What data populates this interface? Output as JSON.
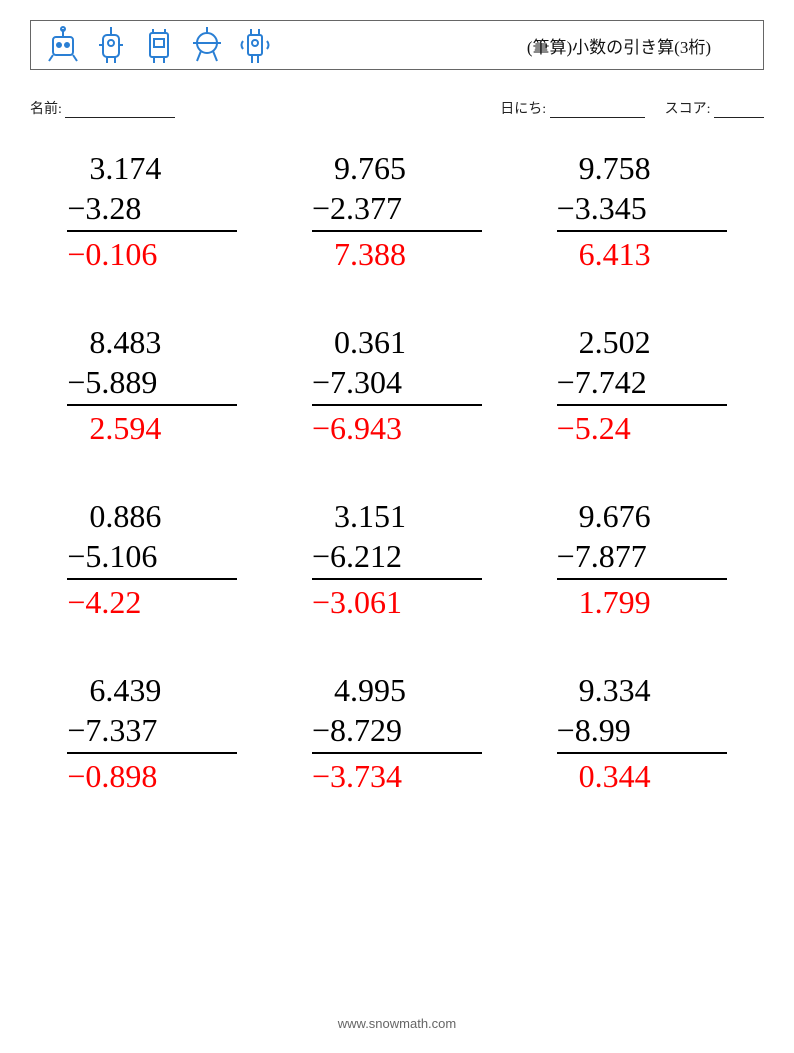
{
  "header": {
    "title": "(筆算)小数の引き算(3桁)",
    "robot_color": "#2a7fd4",
    "border_color": "#666666"
  },
  "info": {
    "name_label": "名前:",
    "date_label": "日にち:",
    "score_label": "スコア:",
    "name_blank_width": 110,
    "date_blank_width": 95,
    "score_blank_width": 50
  },
  "style": {
    "problem_fontsize": 32,
    "answer_color": "#ff0000",
    "text_color": "#000000",
    "rule_color": "#000000",
    "columns": 3,
    "rows": 4
  },
  "problems": [
    {
      "minuend": "3.174",
      "subtrahend": "3.28",
      "answer": "−0.106",
      "neg": true
    },
    {
      "minuend": "9.765",
      "subtrahend": "2.377",
      "answer": "7.388",
      "neg": false
    },
    {
      "minuend": "9.758",
      "subtrahend": "3.345",
      "answer": "6.413",
      "neg": false
    },
    {
      "minuend": "8.483",
      "subtrahend": "5.889",
      "answer": "2.594",
      "neg": false
    },
    {
      "minuend": "0.361",
      "subtrahend": "7.304",
      "answer": "−6.943",
      "neg": true
    },
    {
      "minuend": "2.502",
      "subtrahend": "7.742",
      "answer": "−5.24",
      "neg": true
    },
    {
      "minuend": "0.886",
      "subtrahend": "5.106",
      "answer": "−4.22",
      "neg": true
    },
    {
      "minuend": "3.151",
      "subtrahend": "6.212",
      "answer": "−3.061",
      "neg": true
    },
    {
      "minuend": "9.676",
      "subtrahend": "7.877",
      "answer": "1.799",
      "neg": false
    },
    {
      "minuend": "6.439",
      "subtrahend": "7.337",
      "answer": "−0.898",
      "neg": true
    },
    {
      "minuend": "4.995",
      "subtrahend": "8.729",
      "answer": "−3.734",
      "neg": true
    },
    {
      "minuend": "9.334",
      "subtrahend": "8.99",
      "answer": "0.344",
      "neg": false
    }
  ],
  "footer": {
    "text": "www.snowmath.com"
  }
}
